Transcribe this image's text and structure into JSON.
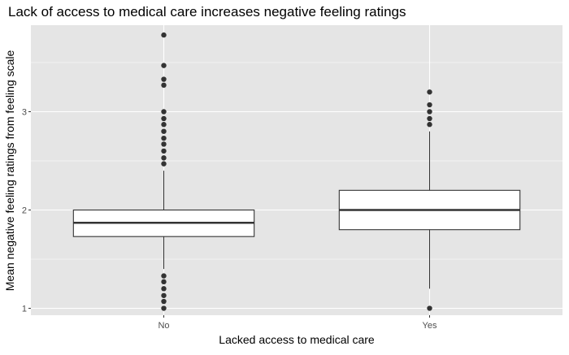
{
  "chart_data": {
    "type": "boxplot",
    "title": "Lack of access to medical care increases negative feeling ratings",
    "xlabel": "Lacked access to medical care",
    "ylabel": "Mean negative feeling ratings from feeling scale",
    "categories": [
      "No",
      "Yes"
    ],
    "yticks": [
      1,
      2,
      3
    ],
    "ylim": [
      0.93,
      3.88
    ],
    "grid": true,
    "colors": {
      "panel_background": "#e5e5e5",
      "gridline": "#ffffff",
      "box_fill": "#ffffff",
      "box_stroke": "#333333",
      "outlier": "#333333",
      "text": "#000000",
      "tick_text": "#4d4d4d"
    },
    "boxes": [
      {
        "category": "No",
        "min": 1.4,
        "q1": 1.73,
        "median": 1.87,
        "q3": 2.0,
        "max": 2.4,
        "outliers": [
          3.78,
          3.47,
          3.33,
          3.27,
          3.0,
          2.93,
          2.87,
          2.8,
          2.73,
          2.67,
          2.6,
          2.53,
          2.47,
          1.33,
          1.27,
          1.2,
          1.13,
          1.07,
          1.0
        ]
      },
      {
        "category": "Yes",
        "min": 1.2,
        "q1": 1.8,
        "median": 2.0,
        "q3": 2.2,
        "max": 2.8,
        "outliers": [
          3.2,
          3.07,
          3.0,
          2.93,
          2.87,
          1.0
        ]
      }
    ]
  }
}
